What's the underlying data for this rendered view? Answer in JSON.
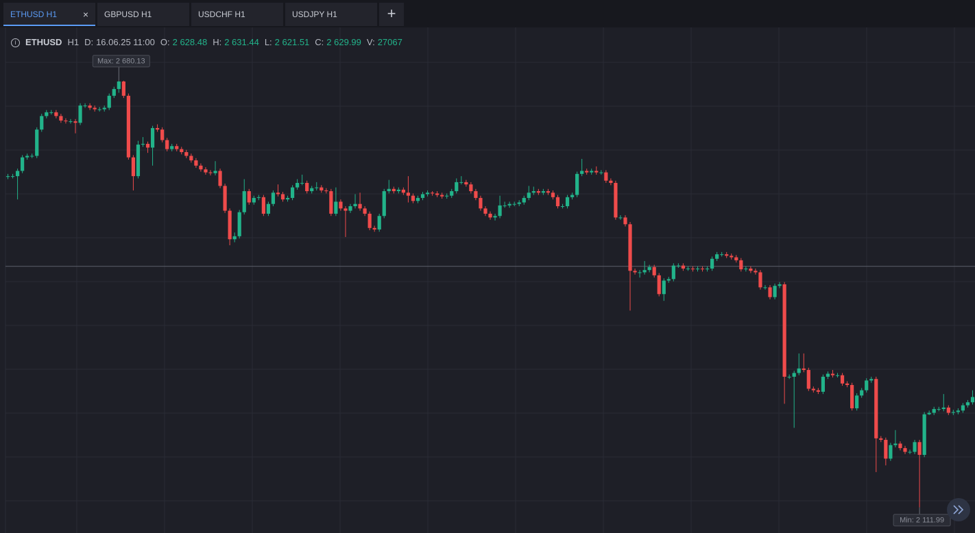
{
  "tabs": {
    "items": [
      "ETHUSD H1",
      "GBPUSD H1",
      "USDCHF H1",
      "USDJPY H1"
    ],
    "active": 0
  },
  "info": {
    "symbol": "ETHUSD",
    "timeframe": "H1",
    "date_label": "D:",
    "date": "16.06.25 11:00",
    "fields": [
      {
        "label": "O:",
        "value": "2 628.48"
      },
      {
        "label": "H:",
        "value": "2 631.44"
      },
      {
        "label": "L:",
        "value": "2 621.51"
      },
      {
        "label": "C:",
        "value": "2 629.99"
      },
      {
        "label": "V:",
        "value": "27067"
      }
    ]
  },
  "chart_data": {
    "type": "candlestick",
    "up_color": "#22b38a",
    "down_color": "#ef4b4b",
    "ylim": [
      2078,
      2751
    ],
    "hline": 2433,
    "max": {
      "label": "Max: 2 680.13",
      "value": 2680.13
    },
    "min": {
      "label": "Min: 2 111.99",
      "value": 2111.99
    },
    "open": [
      2552,
      2553,
      2553,
      2560,
      2578,
      2580,
      2580,
      2615,
      2633,
      2638,
      2638,
      2633,
      2627,
      2626,
      2626,
      2624,
      2647,
      2647,
      2644,
      2642,
      2642,
      2644,
      2660,
      2669,
      2679,
      2660,
      2578,
      2553,
      2595,
      2596,
      2591,
      2617,
      2615,
      2601,
      2589,
      2593,
      2589,
      2585,
      2580,
      2574,
      2567,
      2562,
      2558,
      2557,
      2560,
      2540,
      2507,
      2469,
      2473,
      2505,
      2533,
      2518,
      2524,
      2525,
      2503,
      2516,
      2531,
      2529,
      2522,
      2524,
      2538,
      2544,
      2544,
      2533,
      2537,
      2538,
      2534,
      2533,
      2503,
      2519,
      2510,
      2507,
      2513,
      2516,
      2510,
      2503,
      2484,
      2482,
      2500,
      2533,
      2536,
      2533,
      2535,
      2531,
      2527,
      2520,
      2524,
      2529,
      2531,
      2530,
      2528,
      2526,
      2527,
      2533,
      2545,
      2545,
      2542,
      2533,
      2524,
      2510,
      2503,
      2498,
      2500,
      2514,
      2514,
      2516,
      2516,
      2518,
      2524,
      2531,
      2533,
      2531,
      2533,
      2531,
      2525,
      2513,
      2513,
      2525,
      2528,
      2556,
      2560,
      2558,
      2560,
      2558,
      2558,
      2547,
      2544,
      2498,
      2498,
      2489,
      2427,
      2425,
      2425,
      2428,
      2432,
      2421,
      2396,
      2414,
      2416,
      2434,
      2434,
      2430,
      2430,
      2429,
      2430,
      2429,
      2430,
      2443,
      2449,
      2449,
      2447,
      2445,
      2441,
      2429,
      2430,
      2427,
      2425,
      2405,
      2405,
      2392,
      2407,
      2409,
      2286,
      2286,
      2291,
      2297,
      2295,
      2270,
      2268,
      2266,
      2286,
      2290,
      2288,
      2288,
      2277,
      2275,
      2244,
      2261,
      2268,
      2281,
      2283,
      2204,
      2202,
      2177,
      2195,
      2197,
      2191,
      2186,
      2186,
      2199,
      2182,
      2236,
      2238,
      2243,
      2243,
      2245,
      2238,
      2239,
      2241,
      2248,
      2252
    ],
    "high": [
      2556,
      2556,
      2563,
      2581,
      2583,
      2583,
      2618,
      2636,
      2641,
      2641,
      2641,
      2636,
      2630,
      2629,
      2629,
      2650,
      2650,
      2650,
      2647,
      2645,
      2647,
      2663,
      2672,
      2680.13,
      2680,
      2663,
      2581,
      2600,
      2605,
      2599,
      2620,
      2622,
      2618,
      2604,
      2596,
      2596,
      2592,
      2588,
      2583,
      2577,
      2570,
      2565,
      2561,
      2573,
      2563,
      2543,
      2510,
      2478,
      2508,
      2549,
      2536,
      2527,
      2528,
      2528,
      2519,
      2534,
      2542,
      2532,
      2527,
      2541,
      2549,
      2555,
      2547,
      2540,
      2545,
      2541,
      2537,
      2536,
      2538,
      2522,
      2513,
      2516,
      2529,
      2531,
      2513,
      2506,
      2487,
      2503,
      2536,
      2548,
      2539,
      2538,
      2538,
      2553,
      2530,
      2527,
      2532,
      2534,
      2533,
      2533,
      2531,
      2530,
      2536,
      2550,
      2553,
      2548,
      2545,
      2536,
      2527,
      2513,
      2506,
      2503,
      2527,
      2519,
      2519,
      2519,
      2521,
      2527,
      2540,
      2539,
      2536,
      2536,
      2536,
      2534,
      2528,
      2516,
      2528,
      2531,
      2559,
      2576,
      2563,
      2563,
      2566,
      2561,
      2561,
      2550,
      2547,
      2501,
      2501,
      2492,
      2430,
      2428,
      2440,
      2435,
      2435,
      2424,
      2417,
      2419,
      2437,
      2437,
      2437,
      2433,
      2433,
      2433,
      2433,
      2433,
      2446,
      2452,
      2452,
      2452,
      2450,
      2448,
      2444,
      2433,
      2433,
      2430,
      2428,
      2408,
      2408,
      2410,
      2412,
      2412,
      2289,
      2294,
      2317,
      2317,
      2298,
      2273,
      2271,
      2289,
      2293,
      2295,
      2291,
      2291,
      2280,
      2278,
      2264,
      2271,
      2284,
      2286,
      2286,
      2207,
      2205,
      2198,
      2215,
      2200,
      2194,
      2189,
      2202,
      2202,
      2239,
      2241,
      2246,
      2246,
      2263,
      2248,
      2242,
      2244,
      2251,
      2255,
      2268
    ],
    "low": [
      2549,
      2550,
      2522,
      2557,
      2575,
      2577,
      2577,
      2612,
      2630,
      2635,
      2630,
      2624,
      2623,
      2623,
      2610,
      2621,
      2644,
      2641,
      2639,
      2639,
      2639,
      2641,
      2657,
      2664,
      2657,
      2575,
      2534,
      2550,
      2592,
      2584,
      2567,
      2612,
      2598,
      2586,
      2586,
      2586,
      2582,
      2577,
      2571,
      2564,
      2559,
      2555,
      2554,
      2554,
      2537,
      2504,
      2461,
      2465,
      2470,
      2502,
      2515,
      2515,
      2521,
      2500,
      2500,
      2513,
      2526,
      2519,
      2519,
      2521,
      2535,
      2541,
      2530,
      2530,
      2534,
      2531,
      2530,
      2500,
      2500,
      2507,
      2472,
      2504,
      2510,
      2507,
      2500,
      2481,
      2479,
      2479,
      2497,
      2530,
      2530,
      2530,
      2528,
      2518,
      2517,
      2517,
      2521,
      2526,
      2527,
      2525,
      2523,
      2523,
      2524,
      2530,
      2542,
      2539,
      2530,
      2521,
      2507,
      2500,
      2495,
      2494,
      2497,
      2511,
      2511,
      2513,
      2513,
      2515,
      2521,
      2528,
      2528,
      2528,
      2528,
      2522,
      2510,
      2510,
      2510,
      2522,
      2525,
      2553,
      2555,
      2555,
      2555,
      2555,
      2544,
      2541,
      2495,
      2495,
      2486,
      2374,
      2422,
      2418,
      2422,
      2425,
      2418,
      2393,
      2387,
      2411,
      2413,
      2431,
      2427,
      2427,
      2426,
      2426,
      2426,
      2426,
      2427,
      2440,
      2446,
      2444,
      2442,
      2438,
      2426,
      2426,
      2424,
      2422,
      2402,
      2402,
      2389,
      2389,
      2404,
      2250,
      2283,
      2218,
      2288,
      2292,
      2267,
      2265,
      2263,
      2263,
      2283,
      2285,
      2285,
      2274,
      2272,
      2241,
      2241,
      2258,
      2265,
      2278,
      2159,
      2199,
      2168,
      2174,
      2192,
      2188,
      2183,
      2183,
      2183,
      2111.99,
      2179,
      2235,
      2235,
      2240,
      2240,
      2235,
      2235,
      2236,
      2238,
      2245,
      2249
    ],
    "close": [
      2553,
      2553,
      2560,
      2578,
      2580,
      2580,
      2615,
      2633,
      2638,
      2638,
      2633,
      2627,
      2626,
      2626,
      2624,
      2647,
      2647,
      2644,
      2642,
      2642,
      2644,
      2660,
      2669,
      2679,
      2660,
      2578,
      2553,
      2595,
      2596,
      2591,
      2617,
      2615,
      2601,
      2589,
      2593,
      2589,
      2585,
      2580,
      2574,
      2567,
      2562,
      2558,
      2557,
      2560,
      2540,
      2507,
      2469,
      2473,
      2505,
      2533,
      2518,
      2524,
      2525,
      2503,
      2516,
      2531,
      2529,
      2522,
      2524,
      2538,
      2544,
      2544,
      2533,
      2537,
      2538,
      2534,
      2533,
      2503,
      2519,
      2510,
      2507,
      2513,
      2516,
      2510,
      2503,
      2484,
      2482,
      2500,
      2533,
      2536,
      2533,
      2535,
      2531,
      2527,
      2520,
      2524,
      2529,
      2531,
      2530,
      2528,
      2526,
      2527,
      2533,
      2545,
      2545,
      2542,
      2533,
      2524,
      2510,
      2503,
      2498,
      2500,
      2514,
      2514,
      2516,
      2516,
      2518,
      2524,
      2531,
      2533,
      2531,
      2533,
      2531,
      2525,
      2513,
      2513,
      2525,
      2528,
      2556,
      2560,
      2558,
      2560,
      2558,
      2558,
      2547,
      2544,
      2498,
      2498,
      2489,
      2427,
      2425,
      2425,
      2428,
      2432,
      2421,
      2396,
      2414,
      2416,
      2434,
      2434,
      2430,
      2430,
      2429,
      2430,
      2429,
      2430,
      2443,
      2449,
      2449,
      2447,
      2445,
      2441,
      2429,
      2430,
      2427,
      2425,
      2405,
      2405,
      2392,
      2407,
      2409,
      2286,
      2286,
      2291,
      2297,
      2295,
      2270,
      2268,
      2266,
      2286,
      2290,
      2288,
      2288,
      2277,
      2275,
      2244,
      2261,
      2268,
      2281,
      2283,
      2204,
      2202,
      2177,
      2195,
      2197,
      2191,
      2186,
      2186,
      2199,
      2182,
      2236,
      2238,
      2243,
      2243,
      2245,
      2238,
      2239,
      2241,
      2248,
      2252,
      2259
    ]
  }
}
